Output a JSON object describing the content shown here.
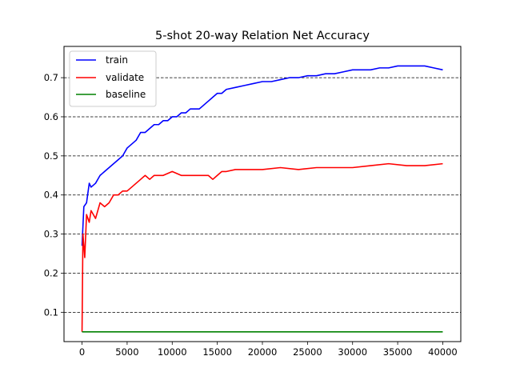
{
  "chart_data": {
    "type": "line",
    "title": "5-shot 20-way Relation Net Accuracy",
    "xlabel": "",
    "ylabel": "",
    "xlim": [
      -2000,
      42000
    ],
    "ylim": [
      0.025,
      0.78
    ],
    "xticks": [
      0,
      5000,
      10000,
      15000,
      20000,
      25000,
      30000,
      35000,
      40000
    ],
    "xtick_labels": [
      "0",
      "5000",
      "10000",
      "15000",
      "20000",
      "25000",
      "30000",
      "35000",
      "40000"
    ],
    "yticks": [
      0.1,
      0.2,
      0.3,
      0.4,
      0.5,
      0.6,
      0.7
    ],
    "ytick_labels": [
      "0.1",
      "0.2",
      "0.3",
      "0.4",
      "0.5",
      "0.6",
      "0.7"
    ],
    "grid": "horizontal dashed at y ticks",
    "legend_position": "top-left",
    "series": [
      {
        "name": "train",
        "color": "#0000ff",
        "x": [
          0,
          200,
          500,
          800,
          1000,
          1500,
          2000,
          2500,
          3000,
          3500,
          4000,
          4500,
          5000,
          5500,
          6000,
          6500,
          7000,
          7500,
          8000,
          8500,
          9000,
          9500,
          10000,
          10500,
          11000,
          11500,
          12000,
          12500,
          13000,
          13500,
          14000,
          14500,
          15000,
          15500,
          16000,
          17000,
          18000,
          19000,
          20000,
          21000,
          22000,
          23000,
          24000,
          25000,
          26000,
          27000,
          28000,
          29000,
          30000,
          31000,
          32000,
          33000,
          34000,
          35000,
          36000,
          37000,
          38000,
          39000,
          40000
        ],
        "y": [
          0.27,
          0.37,
          0.38,
          0.43,
          0.42,
          0.43,
          0.45,
          0.46,
          0.47,
          0.48,
          0.49,
          0.5,
          0.52,
          0.53,
          0.54,
          0.56,
          0.56,
          0.57,
          0.58,
          0.58,
          0.59,
          0.59,
          0.6,
          0.6,
          0.61,
          0.61,
          0.62,
          0.62,
          0.62,
          0.63,
          0.64,
          0.65,
          0.66,
          0.66,
          0.67,
          0.675,
          0.68,
          0.685,
          0.69,
          0.69,
          0.695,
          0.7,
          0.7,
          0.705,
          0.705,
          0.71,
          0.71,
          0.715,
          0.72,
          0.72,
          0.72,
          0.725,
          0.725,
          0.73,
          0.73,
          0.73,
          0.73,
          0.725,
          0.72
        ]
      },
      {
        "name": "validate",
        "color": "#ff0000",
        "x": [
          0,
          100,
          300,
          500,
          800,
          1000,
          1500,
          2000,
          2500,
          3000,
          3500,
          4000,
          4500,
          5000,
          5500,
          6000,
          6500,
          7000,
          7500,
          8000,
          9000,
          10000,
          11000,
          12000,
          13000,
          14000,
          14500,
          15000,
          15500,
          16000,
          17000,
          18000,
          19000,
          20000,
          22000,
          24000,
          26000,
          28000,
          30000,
          32000,
          34000,
          36000,
          38000,
          40000
        ],
        "y": [
          0.05,
          0.3,
          0.24,
          0.35,
          0.33,
          0.36,
          0.34,
          0.38,
          0.37,
          0.38,
          0.4,
          0.4,
          0.41,
          0.41,
          0.42,
          0.43,
          0.44,
          0.45,
          0.44,
          0.45,
          0.45,
          0.46,
          0.45,
          0.45,
          0.45,
          0.45,
          0.44,
          0.45,
          0.46,
          0.46,
          0.465,
          0.465,
          0.465,
          0.465,
          0.47,
          0.465,
          0.47,
          0.47,
          0.47,
          0.475,
          0.48,
          0.475,
          0.475,
          0.48
        ]
      },
      {
        "name": "baseline",
        "color": "#008000",
        "x": [
          0,
          40000
        ],
        "y": [
          0.05,
          0.05
        ]
      }
    ]
  }
}
